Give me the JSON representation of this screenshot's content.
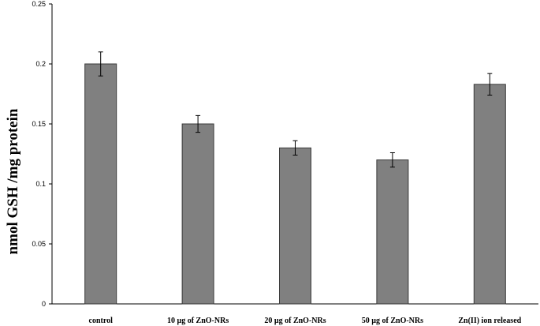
{
  "chart_data": {
    "type": "bar",
    "title": "",
    "xlabel": "",
    "ylabel": "nmol GSH /mg protein",
    "categories": [
      "control",
      "10 µg of  ZnO-NRs",
      "20 µg of  ZnO-NRs",
      "50 µg of  ZnO-NRs",
      "Zn(II) ion released"
    ],
    "values": [
      0.2,
      0.15,
      0.13,
      0.12,
      0.183
    ],
    "errors": [
      0.01,
      0.007,
      0.006,
      0.006,
      0.009
    ],
    "ylim": [
      0,
      0.25
    ],
    "yticks": [
      0,
      0.05,
      0.1,
      0.15,
      0.2,
      0.25
    ],
    "ytick_labels": [
      "0",
      "0.05",
      "0.1",
      "0.15",
      "0.2",
      "0.25"
    ],
    "grid": false,
    "legend": "none",
    "bar_color": "#808080",
    "bar_edge_color": "#3a3a3a"
  }
}
